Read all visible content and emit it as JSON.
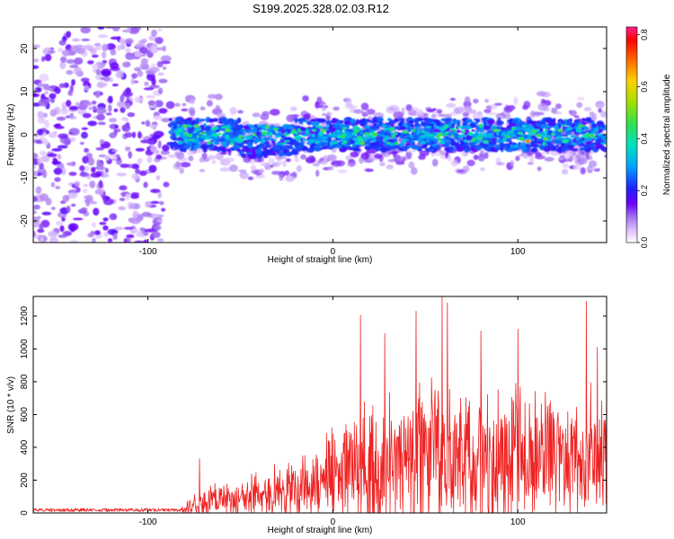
{
  "title": "S199.2025.328.02.03.R12",
  "spectrogram": {
    "type": "heatmap",
    "xlabel": "Height of straight line (km)",
    "ylabel": "Frequency (Hz)",
    "xlim": [
      -162,
      148
    ],
    "ylim": [
      -25,
      25
    ],
    "xticks": [
      -100,
      0,
      100
    ],
    "xtick_labels": [
      "-100",
      "0",
      "100"
    ],
    "yticks": [
      -20,
      -10,
      0,
      10,
      20
    ],
    "ytick_labels": [
      "-20",
      "-10",
      "0",
      "10",
      "20"
    ],
    "noise_region_x": [
      -162,
      -90
    ],
    "signal_region_x": [
      -88,
      148
    ],
    "signal_center_hz": 0,
    "signal_halfwidth_hz": [
      4,
      7
    ],
    "peak_amplitude_x": [
      105,
      106
    ],
    "peak_amplitude_value": 0.8
  },
  "colorbar": {
    "label": "Normalized spectral amplitude",
    "min": 0.0,
    "max": 0.83,
    "ticks": [
      0.0,
      0.2,
      0.4,
      0.6,
      0.8
    ],
    "tick_labels": [
      "0.0",
      "0.2",
      "0.4",
      "0.6",
      "0.8"
    ]
  },
  "chart_data": {
    "type": "line",
    "title": "S199.2025.328.02.03.R12",
    "xlabel": "Height of straight line (km)",
    "ylabel": "SNR (10 * v/v)",
    "xlim": [
      -162,
      148
    ],
    "ylim": [
      0,
      1320
    ],
    "xticks": [
      -100,
      0,
      100
    ],
    "xtick_labels": [
      "-100",
      "0",
      "100"
    ],
    "yticks": [
      0,
      200,
      400,
      600,
      800,
      1000,
      1200
    ],
    "ytick_labels": [
      "0",
      "200",
      "400",
      "600",
      "800",
      "1000",
      "1200"
    ],
    "series_color": "#ee2222",
    "envelope": {
      "x": [
        -162,
        -120,
        -82,
        -78,
        -70,
        -60,
        -50,
        -40,
        -30,
        -20,
        -10,
        0,
        10,
        20,
        30,
        40,
        50,
        60,
        70,
        80,
        90,
        100,
        110,
        120,
        130,
        140,
        148
      ],
      "base": [
        10,
        10,
        15,
        30,
        60,
        80,
        90,
        110,
        130,
        160,
        190,
        230,
        260,
        300,
        330,
        340,
        330,
        330,
        320,
        320,
        310,
        330,
        320,
        330,
        350,
        340,
        320
      ],
      "amp": [
        10,
        10,
        15,
        60,
        110,
        130,
        140,
        170,
        200,
        240,
        300,
        360,
        420,
        480,
        520,
        560,
        560,
        540,
        530,
        520,
        500,
        500,
        500,
        480,
        500,
        480,
        470
      ]
    },
    "peaks": [
      {
        "x": -72,
        "y": 330
      },
      {
        "x": 15,
        "y": 1205
      },
      {
        "x": 28,
        "y": 1095
      },
      {
        "x": 45,
        "y": 1230
      },
      {
        "x": 59,
        "y": 1320
      },
      {
        "x": 62,
        "y": 1280
      },
      {
        "x": 80,
        "y": 1110
      },
      {
        "x": 100,
        "y": 1120
      },
      {
        "x": 137,
        "y": 1290
      },
      {
        "x": 143,
        "y": 1010
      },
      {
        "x": 148,
        "y": 920
      }
    ]
  }
}
